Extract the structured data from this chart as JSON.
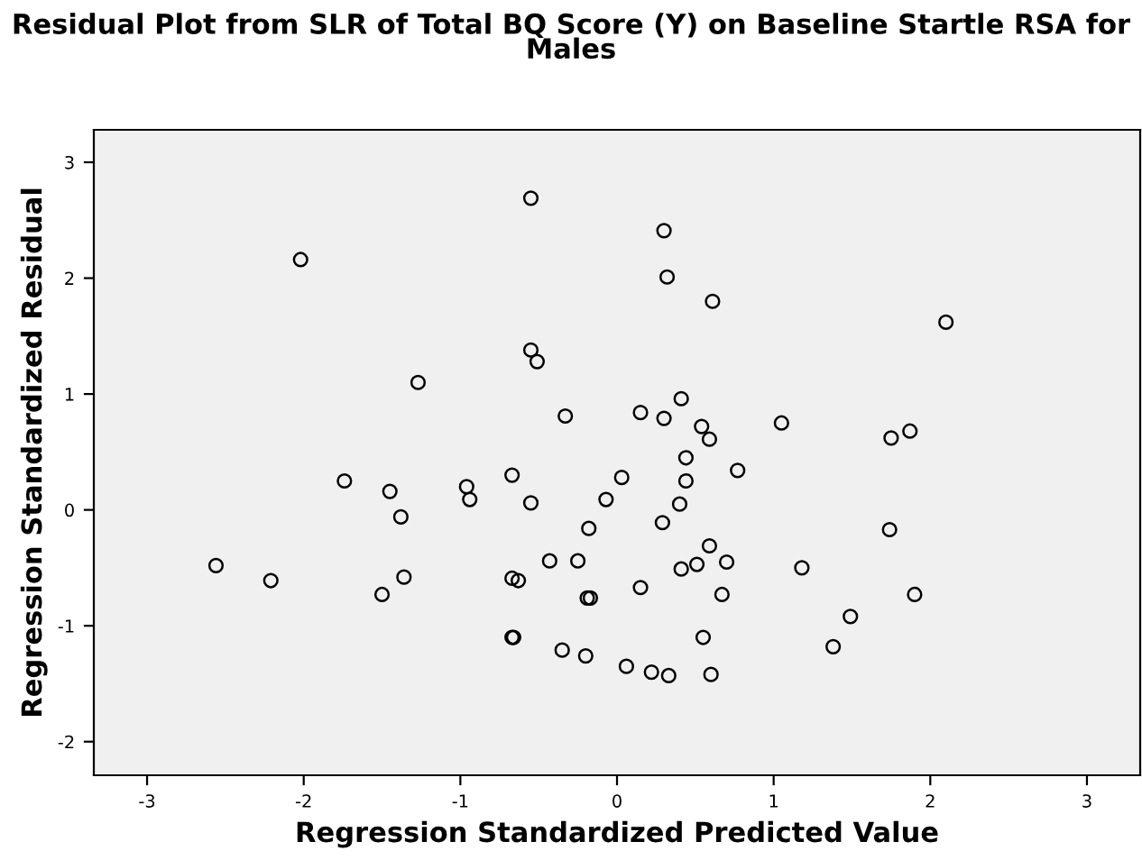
{
  "chart_data": {
    "type": "scatter",
    "title": "Residual Plot from SLR of Total BQ Score (Y) on Baseline Startle RSA for\nMales",
    "xlabel": "Regression Standardized Predicted Value",
    "ylabel": "Regression Standardized Residual",
    "xlim": [
      -3.34,
      3.34
    ],
    "ylim": [
      -2.29,
      3.28
    ],
    "xticks": [
      -3,
      -2,
      -1,
      0,
      1,
      2,
      3
    ],
    "yticks": [
      -2,
      -1,
      0,
      1,
      2,
      3
    ],
    "grid": false,
    "legend": false,
    "marker": "circle",
    "series": [
      {
        "color": "#000000",
        "x": [
          -2.56,
          -2.21,
          -2.02,
          -1.27,
          -1.74,
          -1.45,
          -1.38,
          -1.36,
          -1.5,
          -0.96,
          -0.94,
          -0.67,
          -0.67,
          -0.63,
          -0.67,
          -0.66,
          -0.55,
          -0.55,
          -0.55,
          -0.51,
          -0.33,
          -0.43,
          -0.18,
          -0.25,
          -0.17,
          -0.19,
          -0.35,
          -0.2,
          -0.07,
          0.03,
          0.06,
          0.15,
          0.15,
          0.22,
          0.3,
          0.3,
          0.32,
          0.33,
          0.29,
          0.41,
          0.4,
          0.44,
          0.44,
          0.41,
          0.51,
          0.54,
          0.59,
          0.59,
          0.55,
          0.6,
          0.61,
          0.67,
          0.7,
          0.77,
          1.05,
          1.18,
          1.38,
          1.49,
          1.74,
          1.75,
          1.87,
          1.9,
          2.1
        ],
        "values": [
          -0.48,
          -0.61,
          2.16,
          1.1,
          0.25,
          0.16,
          -0.06,
          -0.58,
          -0.73,
          0.2,
          0.09,
          0.3,
          -0.59,
          -0.61,
          -1.1,
          -1.1,
          0.06,
          2.69,
          1.38,
          1.28,
          0.81,
          -0.44,
          -0.16,
          -0.44,
          -0.76,
          -0.76,
          -1.21,
          -1.26,
          0.09,
          0.28,
          -1.35,
          -0.67,
          0.84,
          -1.4,
          0.79,
          2.41,
          2.01,
          -1.43,
          -0.11,
          0.96,
          0.05,
          0.45,
          0.25,
          -0.51,
          -0.47,
          0.72,
          0.61,
          -0.31,
          -1.1,
          -1.42,
          1.8,
          -0.73,
          -0.45,
          0.34,
          0.75,
          -0.5,
          -1.18,
          -0.92,
          -0.17,
          0.62,
          0.68,
          -0.73,
          1.62
        ]
      }
    ]
  }
}
